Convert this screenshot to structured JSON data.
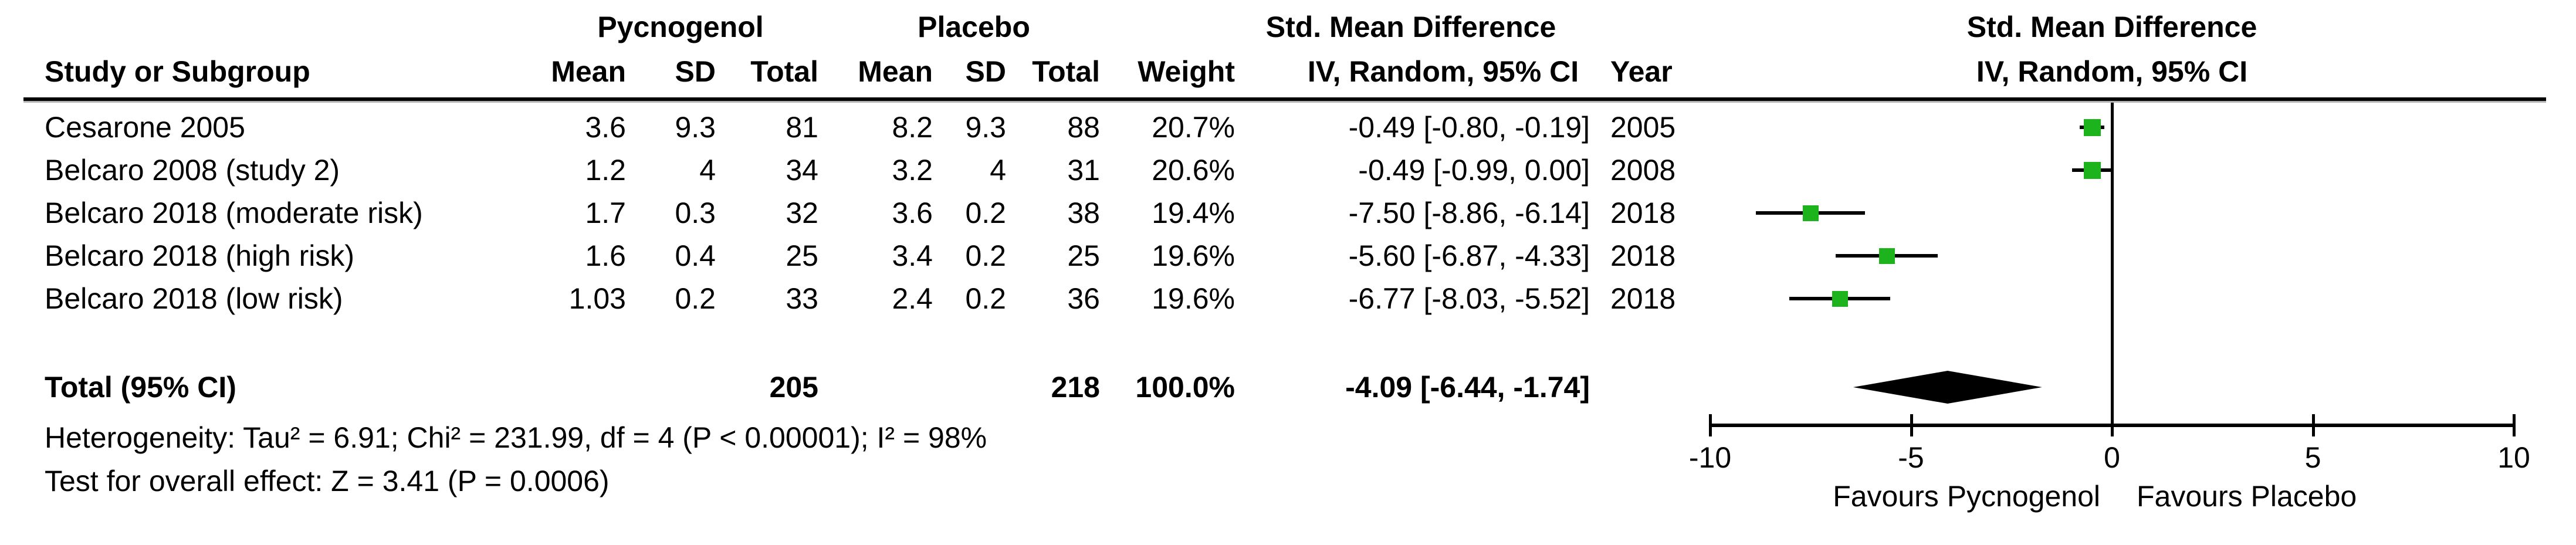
{
  "colors": {
    "marker_green": "#1db31d",
    "line_black": "#000000",
    "rule_shadow": "#b3b3b3",
    "background": "#ffffff"
  },
  "headers": {
    "study": "Study or Subgroup",
    "group1": "Pycnogenol",
    "group2": "Placebo",
    "mean1": "Mean",
    "sd1": "SD",
    "total1": "Total",
    "mean2": "Mean",
    "sd2": "SD",
    "total2": "Total",
    "weight": "Weight",
    "smd_table": "Std. Mean Difference",
    "method_table": "IV, Random, 95% CI",
    "year": "Year",
    "smd_plot": "Std. Mean Difference",
    "method_plot": "IV, Random, 95% CI"
  },
  "total_row": {
    "label": "Total (95% CI)",
    "total1": "205",
    "total2": "218",
    "weight": "100.0%",
    "ci_text": "-4.09 [-6.44, -1.74]"
  },
  "footer": {
    "heterogeneity": "Heterogeneity: Tau² = 6.91; Chi² = 231.99, df = 4 (P < 0.00001); I² = 98%",
    "overall_effect": "Test for overall effect: Z = 3.41 (P = 0.0006)"
  },
  "axis_labels": {
    "favours_left": "Favours Pycnogenol",
    "favours_right": "Favours Placebo"
  },
  "chart_data": {
    "type": "scatter",
    "subtype": "forest-plot",
    "title": "Std. Mean Difference, IV, Random, 95% CI",
    "effect_measure": "Std. Mean Difference",
    "model": "IV, Random, 95% CI",
    "xlim": [
      -10,
      10
    ],
    "x_ticks": [
      -10,
      -5,
      0,
      5,
      10
    ],
    "grid": false,
    "studies": [
      {
        "label": "Cesarone 2005",
        "mean1": "3.6",
        "sd1": "9.3",
        "total1": "81",
        "mean2": "8.2",
        "sd2": "9.3",
        "total2": "88",
        "weight": "20.7%",
        "weight_pct": 20.7,
        "smd": -0.49,
        "ci_low": -0.8,
        "ci_high": -0.19,
        "ci_text": "-0.49 [-0.80, -0.19]",
        "year": "2005"
      },
      {
        "label": "Belcaro 2008 (study 2)",
        "mean1": "1.2",
        "sd1": "4",
        "total1": "34",
        "mean2": "3.2",
        "sd2": "4",
        "total2": "31",
        "weight": "20.6%",
        "weight_pct": 20.6,
        "smd": -0.49,
        "ci_low": -0.99,
        "ci_high": 0.0,
        "ci_text": "-0.49 [-0.99, 0.00]",
        "year": "2008"
      },
      {
        "label": "Belcaro 2018 (moderate risk)",
        "mean1": "1.7",
        "sd1": "0.3",
        "total1": "32",
        "mean2": "3.6",
        "sd2": "0.2",
        "total2": "38",
        "weight": "19.4%",
        "weight_pct": 19.4,
        "smd": -7.5,
        "ci_low": -8.86,
        "ci_high": -6.14,
        "ci_text": "-7.50 [-8.86, -6.14]",
        "year": "2018"
      },
      {
        "label": "Belcaro 2018 (high risk)",
        "mean1": "1.6",
        "sd1": "0.4",
        "total1": "25",
        "mean2": "3.4",
        "sd2": "0.2",
        "total2": "25",
        "weight": "19.6%",
        "weight_pct": 19.6,
        "smd": -5.6,
        "ci_low": -6.87,
        "ci_high": -4.33,
        "ci_text": "-5.60 [-6.87, -4.33]",
        "year": "2018"
      },
      {
        "label": "Belcaro 2018 (low risk)",
        "mean1": "1.03",
        "sd1": "0.2",
        "total1": "33",
        "mean2": "2.4",
        "sd2": "0.2",
        "total2": "36",
        "weight": "19.6%",
        "weight_pct": 19.6,
        "smd": -6.77,
        "ci_low": -8.03,
        "ci_high": -5.52,
        "ci_text": "-6.77 [-8.03, -5.52]",
        "year": "2018"
      }
    ],
    "pooled": {
      "label": "Total (95% CI)",
      "total1": 205,
      "total2": 218,
      "weight_pct": 100.0,
      "smd": -4.09,
      "ci_low": -6.44,
      "ci_high": -1.74
    },
    "heterogeneity": {
      "tau2": 6.91,
      "chi2": 231.99,
      "df": 4,
      "p": "< 0.00001",
      "i2_pct": 98
    },
    "overall_effect": {
      "z": 3.41,
      "p": "= 0.0006"
    },
    "favours_left": "Favours Pycnogenol",
    "favours_right": "Favours Placebo"
  }
}
